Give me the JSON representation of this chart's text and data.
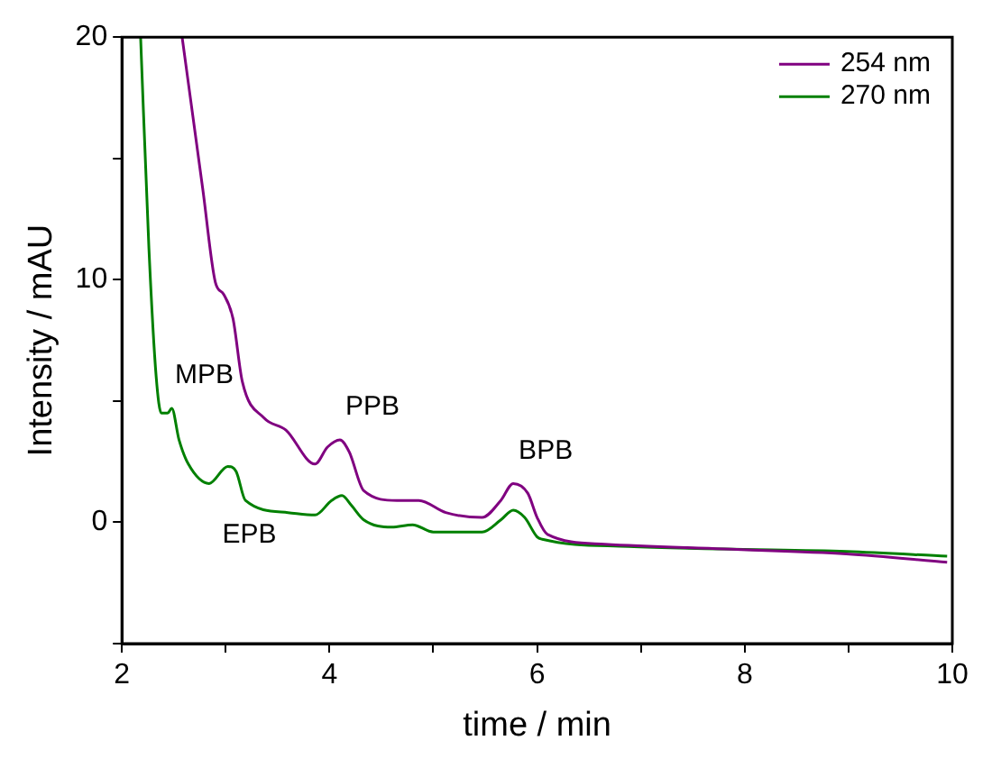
{
  "chart_data": {
    "type": "line",
    "xlabel": "time / min",
    "ylabel": "Intensity / mAU",
    "xlim": [
      2,
      10
    ],
    "ylim": [
      -5,
      20
    ],
    "xticks": [
      2,
      {
        "value": 3,
        "label": null
      },
      4,
      {
        "value": 5,
        "label": null
      },
      6,
      {
        "value": 7,
        "label": null
      },
      8,
      {
        "value": 9,
        "label": null
      },
      10
    ],
    "yticks": [
      {
        "value": -5,
        "label": null
      },
      0,
      {
        "value": 5,
        "label": null
      },
      10,
      {
        "value": 15,
        "label": null
      },
      20
    ],
    "grid": false,
    "legend": "top right",
    "marker": "none",
    "line_style": "solid",
    "series": [
      {
        "name": "254 nm",
        "color": "#800080",
        "x": [
          2.58,
          2.78,
          2.9,
          2.98,
          3.07,
          3.16,
          3.37,
          3.58,
          3.86,
          3.98,
          4.1,
          4.19,
          4.33,
          4.65,
          4.86,
          5.12,
          5.47,
          5.65,
          5.77,
          5.91,
          6.0,
          6.1,
          6.65,
          7.8,
          8.98,
          9.95
        ],
        "values": [
          20,
          13.7,
          9.9,
          9.4,
          8.4,
          5.8,
          4.3,
          3.8,
          2.4,
          3.1,
          3.4,
          2.9,
          1.3,
          0.9,
          0.9,
          0.4,
          0.2,
          0.9,
          1.6,
          1.2,
          0.2,
          -0.5,
          -0.9,
          -1.1,
          -1.3,
          -1.65
        ]
      },
      {
        "name": "270 nm",
        "color": "#008000",
        "x": [
          2.18,
          2.26,
          2.33,
          2.38,
          2.44,
          2.48,
          2.55,
          2.64,
          2.84,
          3.02,
          3.1,
          3.19,
          3.6,
          3.86,
          4.02,
          4.12,
          4.21,
          4.33,
          4.6,
          4.8,
          5.0,
          5.47,
          5.65,
          5.77,
          5.88,
          6.0,
          6.05,
          6.88,
          7.8,
          8.98,
          9.95
        ],
        "values": [
          20,
          11.3,
          6,
          4.5,
          4.5,
          4.7,
          3.4,
          2.4,
          1.6,
          2.3,
          2.1,
          0.9,
          0.4,
          0.3,
          0.9,
          1.1,
          0.7,
          0.1,
          -0.2,
          -0.1,
          -0.4,
          -0.4,
          0.1,
          0.5,
          0.2,
          -0.6,
          -0.7,
          -1.0,
          -1.1,
          -1.2,
          -1.4
        ]
      }
    ],
    "annotations": [
      {
        "text": "MPB",
        "x": 2.48,
        "y": 4.7
      },
      {
        "text": "EPB",
        "x": 3.02,
        "y": 2.3
      },
      {
        "text": "PPB",
        "x": 4.1,
        "y": 3.4
      },
      {
        "text": "BPB",
        "x": 5.77,
        "y": 1.6
      }
    ]
  }
}
